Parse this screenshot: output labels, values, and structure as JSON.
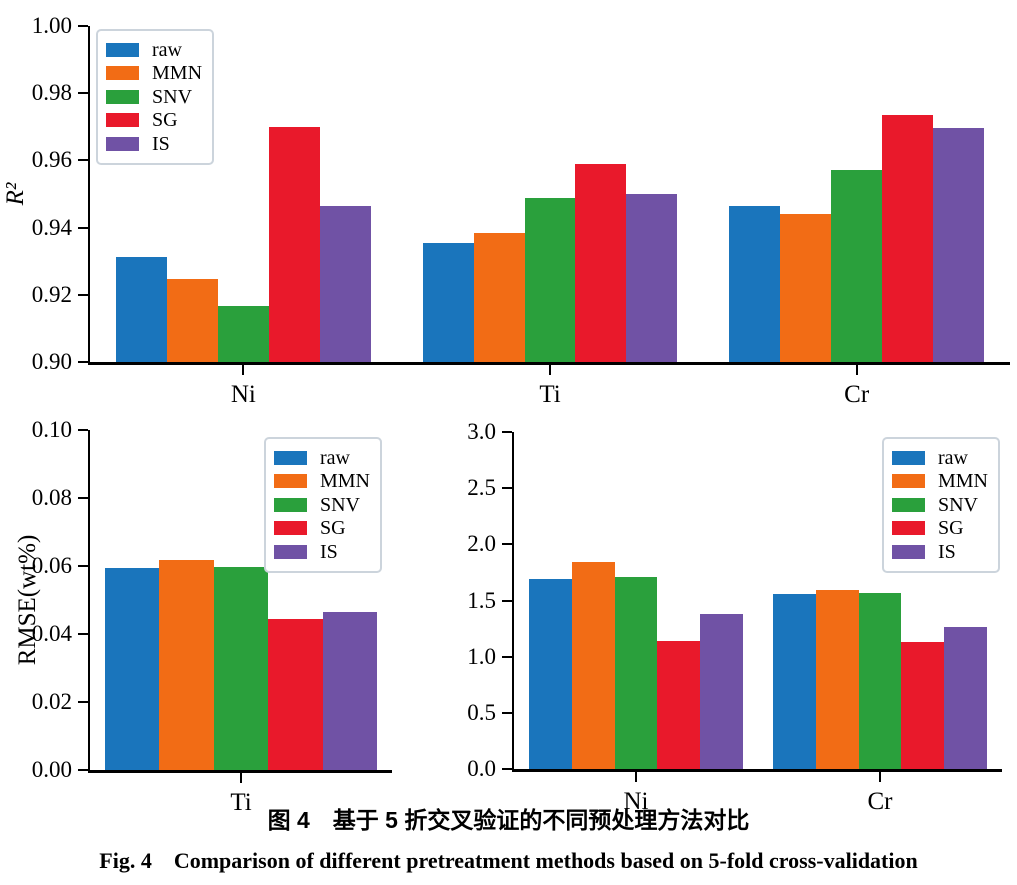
{
  "figure": {
    "caption_zh": "图 4　基于 5 折交叉验证的不同预处理方法对比",
    "caption_en": "Fig. 4　Comparison of different pretreatment methods based on 5-fold cross-validation"
  },
  "palette": {
    "raw": "#1a75bc",
    "MMN": "#f26c15",
    "SNV": "#2aa03c",
    "SG": "#e9192b",
    "IS": "#7052a5"
  },
  "chart_data": [
    {
      "type": "bar",
      "title": "",
      "xlabel": "",
      "ylabel": "R²",
      "categories": [
        "Ni",
        "Ti",
        "Cr"
      ],
      "ylim": [
        0.9,
        1.0
      ],
      "yticks": [
        "0.90",
        "0.92",
        "0.94",
        "0.96",
        "0.98",
        "1.00"
      ],
      "grid": false,
      "legend_position": "upper-left",
      "series": [
        {
          "name": "raw",
          "color": "#1a75bc",
          "values": [
            0.9313,
            0.9355,
            0.9465
          ]
        },
        {
          "name": "MMN",
          "color": "#f26c15",
          "values": [
            0.9248,
            0.9383,
            0.944
          ]
        },
        {
          "name": "SNV",
          "color": "#2aa03c",
          "values": [
            0.9168,
            0.9487,
            0.9572
          ]
        },
        {
          "name": "SG",
          "color": "#e9192b",
          "values": [
            0.97,
            0.959,
            0.9735
          ]
        },
        {
          "name": "IS",
          "color": "#7052a5",
          "values": [
            0.9463,
            0.95,
            0.9695
          ]
        }
      ]
    },
    {
      "type": "bar",
      "title": "",
      "xlabel": "",
      "ylabel": "RMSE(wt%)",
      "categories": [
        "Ti"
      ],
      "ylim": [
        0.0,
        0.1
      ],
      "yticks": [
        "0.00",
        "0.02",
        "0.04",
        "0.06",
        "0.08",
        "0.10"
      ],
      "grid": false,
      "legend_position": "upper-right",
      "series": [
        {
          "name": "raw",
          "color": "#1a75bc",
          "values": [
            0.0595
          ]
        },
        {
          "name": "MMN",
          "color": "#f26c15",
          "values": [
            0.0617
          ]
        },
        {
          "name": "SNV",
          "color": "#2aa03c",
          "values": [
            0.0597
          ]
        },
        {
          "name": "SG",
          "color": "#e9192b",
          "values": [
            0.0443
          ]
        },
        {
          "name": "IS",
          "color": "#7052a5",
          "values": [
            0.0465
          ]
        }
      ]
    },
    {
      "type": "bar",
      "title": "",
      "xlabel": "",
      "ylabel": "",
      "categories": [
        "Ni",
        "Cr"
      ],
      "ylim": [
        0.0,
        3.0
      ],
      "yticks": [
        "0.0",
        "0.5",
        "1.0",
        "1.5",
        "2.0",
        "2.5",
        "3.0"
      ],
      "grid": false,
      "legend_position": "upper-right",
      "series": [
        {
          "name": "raw",
          "color": "#1a75bc",
          "values": [
            1.69,
            1.56
          ]
        },
        {
          "name": "MMN",
          "color": "#f26c15",
          "values": [
            1.84,
            1.59
          ]
        },
        {
          "name": "SNV",
          "color": "#2aa03c",
          "values": [
            1.71,
            1.57
          ]
        },
        {
          "name": "SG",
          "color": "#e9192b",
          "values": [
            1.14,
            1.13
          ]
        },
        {
          "name": "IS",
          "color": "#7052a5",
          "values": [
            1.38,
            1.26
          ]
        }
      ]
    }
  ]
}
